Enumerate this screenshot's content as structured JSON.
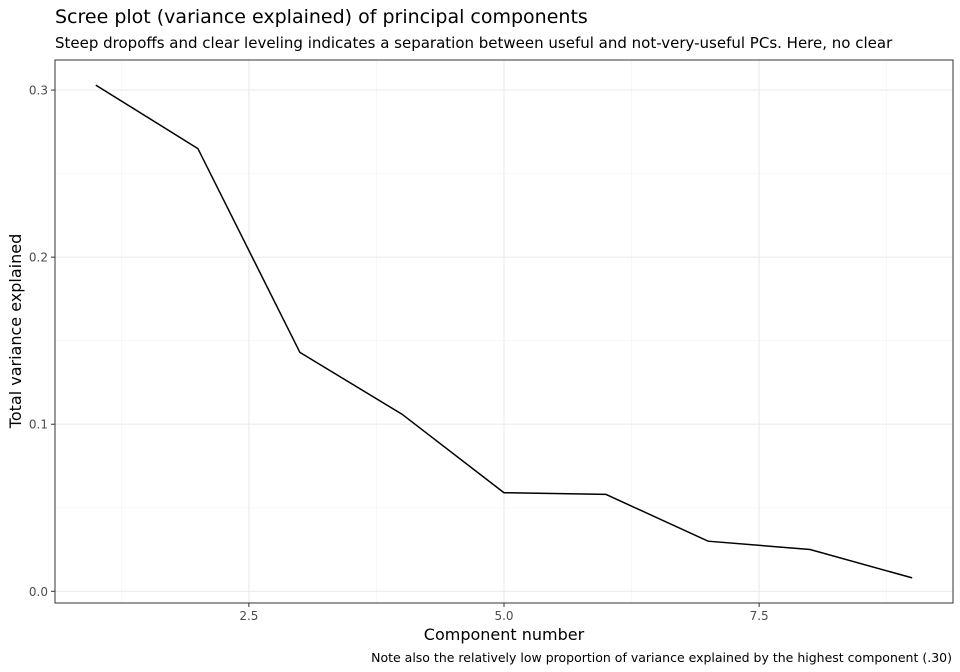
{
  "chart_data": {
    "type": "line",
    "title": "Scree plot (variance explained) of principal components",
    "subtitle": "Steep dropoffs and clear leveling indicates a separation between useful and not-very-useful PCs. Here, no clear",
    "xlabel": "Component number",
    "ylabel": "Total variance explained",
    "caption": "Note also the relatively low proportion of variance explained by the highest component (.30)",
    "xlim": [
      0.6,
      9.4
    ],
    "ylim": [
      -0.007,
      0.318
    ],
    "x_ticks": [
      2.5,
      5.0,
      7.5
    ],
    "x_tick_labels": [
      "2.5",
      "5.0",
      "7.5"
    ],
    "y_ticks": [
      0.0,
      0.1,
      0.2,
      0.3
    ],
    "y_tick_labels": [
      "0.0",
      "0.1",
      "0.2",
      "0.3"
    ],
    "grid": true,
    "legend": "none",
    "series": [
      {
        "x": [
          1,
          2,
          3,
          4,
          5,
          6,
          7,
          8,
          9
        ],
        "values": [
          0.303,
          0.265,
          0.143,
          0.106,
          0.059,
          0.058,
          0.03,
          0.025,
          0.008
        ],
        "color": "#000000"
      }
    ],
    "colors": {
      "panel_border": "#333333",
      "grid_major": "#ebebeb",
      "grid_minor": "#f4f4f4",
      "line": "#000000"
    }
  }
}
